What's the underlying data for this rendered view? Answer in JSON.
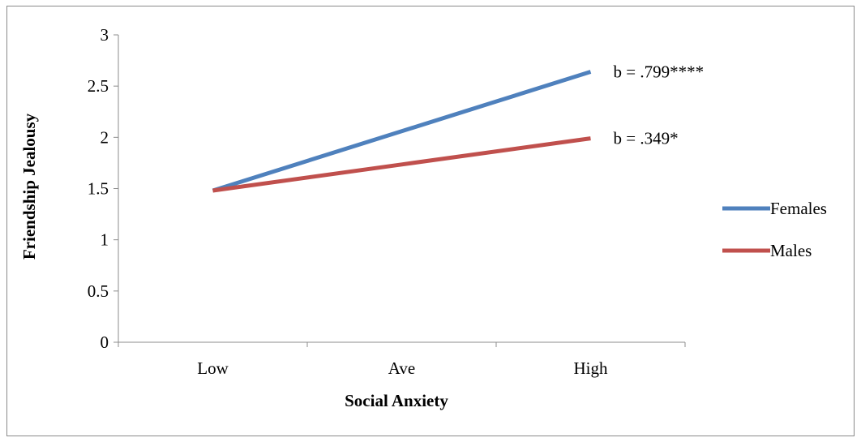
{
  "chart_data": {
    "type": "line",
    "title": "",
    "xlabel": "Social Anxiety",
    "ylabel": "Friendship Jealousy",
    "categories": [
      "Low",
      "Ave",
      "High"
    ],
    "ylim": [
      0,
      3
    ],
    "yticks": [
      "0",
      "0.5",
      "1",
      "1.5",
      "2",
      "2.5",
      "3"
    ],
    "grid": false,
    "legend_position": "right",
    "series": [
      {
        "name": "Females",
        "color": "#4f81bd",
        "values": [
          1.48,
          2.06,
          2.64
        ]
      },
      {
        "name": "Males",
        "color": "#c0504d",
        "values": [
          1.48,
          1.735,
          1.99
        ]
      }
    ],
    "annotations": [
      {
        "text": "b = .799****",
        "series": "Females"
      },
      {
        "text": "b = .349*",
        "series": "Males"
      }
    ]
  }
}
